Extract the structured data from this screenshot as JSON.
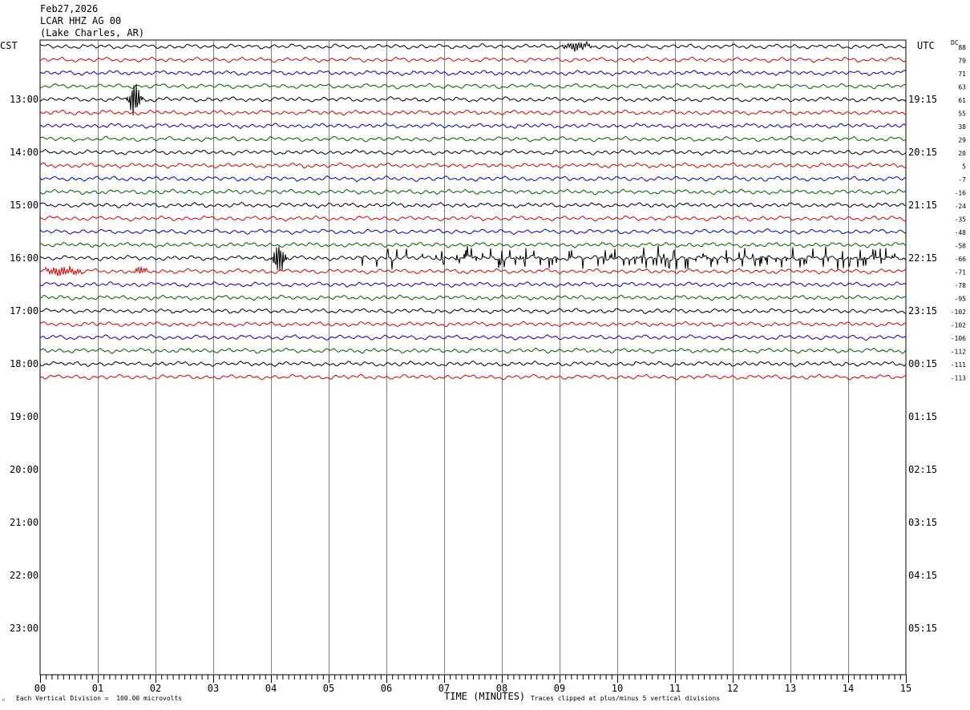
{
  "header": {
    "date": "Feb27,2026",
    "station": "LCAR HHZ AG 00",
    "location": "(Lake Charles, AR)"
  },
  "chart_data": {
    "type": "line",
    "title": "LCAR HHZ AG 00",
    "xlabel": "TIME (MINUTES)",
    "x_ticks": [
      "00",
      "01",
      "02",
      "03",
      "04",
      "05",
      "06",
      "07",
      "08",
      "09",
      "10",
      "11",
      "12",
      "13",
      "14",
      "15"
    ],
    "xlim": [
      0,
      15
    ],
    "left_axis_title": "CST",
    "right_axis_title": "UTC",
    "dc_title": "DC",
    "left_hour_labels": [
      "13:00",
      "14:00",
      "15:00",
      "16:00",
      "17:00",
      "18:00",
      "19:00",
      "20:00",
      "21:00",
      "22:00",
      "23:00"
    ],
    "right_hour_labels": [
      "19:15",
      "20:15",
      "21:15",
      "22:15",
      "23:15",
      "00:15",
      "01:15",
      "02:15",
      "03:15",
      "04:15",
      "05:15"
    ],
    "trace_colors": [
      "#000000",
      "#e00000",
      "#0000d0",
      "#006000"
    ],
    "trace_dc_offsets": [
      "88",
      "79",
      "71",
      "63",
      "61",
      "55",
      "38",
      "29",
      "20",
      "5",
      "-7",
      "-16",
      "-24",
      "-35",
      "-48",
      "-58",
      "-66",
      "-71",
      "-78",
      "-95",
      "-102",
      "-102",
      "-106",
      "-112",
      "-111",
      "-113"
    ],
    "trace_count": 26,
    "events": [
      {
        "trace": 0,
        "start_min": 9.0,
        "end_min": 9.6,
        "strength": "small"
      },
      {
        "trace": 4,
        "start_min": 1.5,
        "end_min": 1.9,
        "strength": "large"
      },
      {
        "trace": 16,
        "start_min": 4.0,
        "end_min": 4.4,
        "strength": "large"
      },
      {
        "trace": 16,
        "start_min": 5.5,
        "end_min": 14.9,
        "strength": "spiky"
      },
      {
        "trace": 17,
        "start_min": 0.0,
        "end_min": 0.8,
        "strength": "small"
      },
      {
        "trace": 17,
        "start_min": 1.6,
        "end_min": 1.9,
        "strength": "small"
      }
    ],
    "grid": true
  },
  "footer": {
    "scale_note": "Each Vertical Division =  100.00 microvolts",
    "clip_note": "Traces clipped at plus/minus 5 vertical divisions",
    "corner_mark": "ᴬ"
  }
}
